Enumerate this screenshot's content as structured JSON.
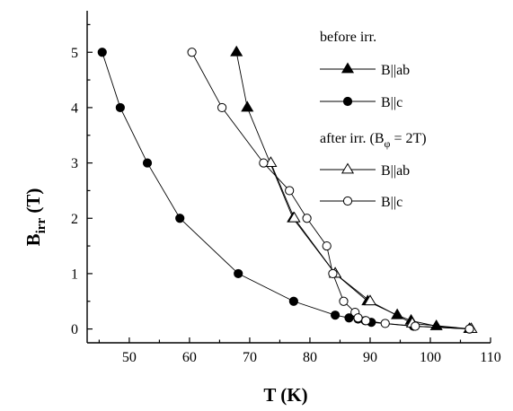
{
  "chart_data": {
    "type": "scatter",
    "xlabel": "T (K)",
    "ylabel": "B_irr (T)",
    "xlim": [
      43,
      110
    ],
    "ylim": [
      -0.25,
      5.75
    ],
    "x_ticks": [
      "50",
      "60",
      "70",
      "80",
      "90",
      "100",
      "110"
    ],
    "y_ticks": [
      "0",
      "1",
      "2",
      "3",
      "4",
      "5"
    ],
    "legend": {
      "position": "top-right",
      "group1_title": "before irr.",
      "group2_title_prefix": "after irr. (B",
      "group2_title_sub": "φ",
      "group2_title_suffix": " = 2T)"
    },
    "series": [
      {
        "name": "B||ab",
        "group": "before irr.",
        "marker": "triangle",
        "filled": true,
        "x": [
          67.8,
          69.6,
          77.2,
          84.2,
          89.6,
          94.5,
          96.8,
          101.0,
          106.5
        ],
        "y": [
          5.0,
          4.0,
          2.0,
          1.0,
          0.5,
          0.25,
          0.15,
          0.05,
          0.0
        ]
      },
      {
        "name": "B||c",
        "group": "before irr.",
        "marker": "circle",
        "filled": true,
        "x": [
          45.5,
          48.5,
          53.0,
          58.4,
          68.1,
          77.3,
          84.2,
          86.5,
          88.0,
          89.2,
          90.2,
          97.2,
          106.5
        ],
        "y": [
          5.0,
          4.0,
          3.0,
          2.0,
          1.0,
          0.5,
          0.25,
          0.2,
          0.18,
          0.15,
          0.12,
          0.05,
          0.0
        ]
      },
      {
        "name": "B||ab",
        "group": "after irr.",
        "marker": "triangle",
        "filled": false,
        "x": [
          73.5,
          77.4,
          84.2,
          90.0,
          97.0,
          106.8
        ],
        "y": [
          3.0,
          2.0,
          1.0,
          0.5,
          0.1,
          0.0
        ]
      },
      {
        "name": "B||c",
        "group": "after irr.",
        "marker": "circle",
        "filled": false,
        "x": [
          60.4,
          65.4,
          72.3,
          76.6,
          79.5,
          82.8,
          83.8,
          85.6,
          87.5,
          88.0,
          89.3,
          92.5,
          97.5,
          106.5
        ],
        "y": [
          5.0,
          4.0,
          3.0,
          2.5,
          2.0,
          1.5,
          1.0,
          0.5,
          0.3,
          0.2,
          0.15,
          0.1,
          0.05,
          0.0
        ]
      }
    ]
  }
}
